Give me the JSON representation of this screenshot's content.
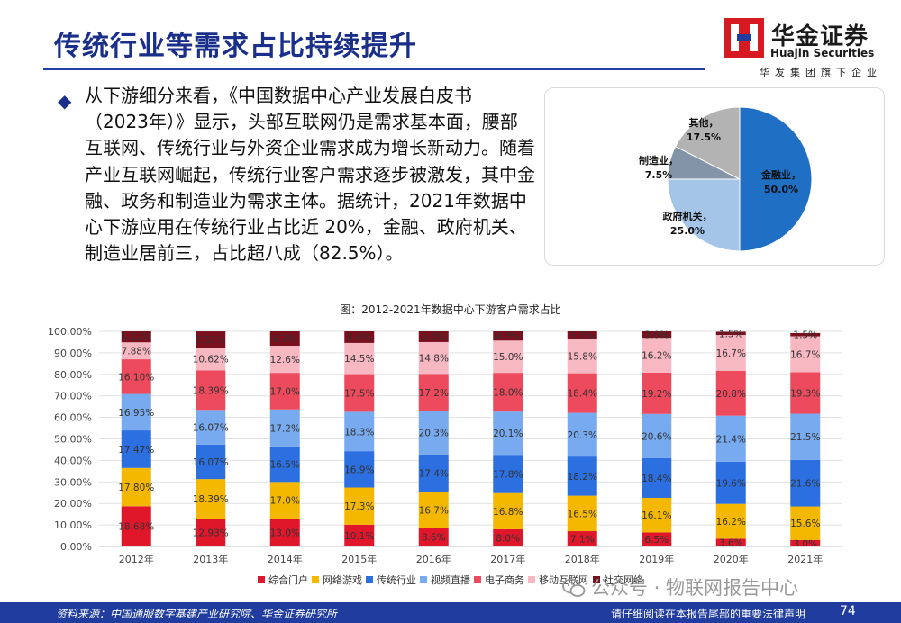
{
  "header": {
    "title": "传统行业等需求占比持续提升",
    "logo_cn": "华金证券",
    "logo_en": "Huajin Securities",
    "logo_sub": "华发集团旗下企业"
  },
  "body": {
    "bullet": "◆",
    "paragraph": "从下游细分来看，《中国数据中心产业发展白皮书（2023年）》显示，头部互联网仍是需求基本面，腰部互联网、传统行业与外资企业需求成为增长新动力。随着产业互联网崛起，传统行业客户需求逐步被激发，其中金融、政务和制造业为需求主体。据统计，2021年数据中心下游应用在传统行业占比近 20%，金融、政府机关、制造业居前三，占比超八成（82.5%）。"
  },
  "pie_chart": {
    "slices": [
      {
        "name": "金融业",
        "value": 50.0,
        "label": "50.0%",
        "color": "#1f6fc5"
      },
      {
        "name": "政府机关",
        "value": 25.0,
        "label": "25.0%",
        "color": "#a5c5e8"
      },
      {
        "name": "制造业",
        "value": 7.5,
        "label": "7.5%",
        "color": "#8494a8"
      },
      {
        "name": "其他",
        "value": 17.5,
        "label": "17.5%",
        "color": "#b3b3b3"
      }
    ]
  },
  "chart_title": "图：2012-2021年数据中心下游客户需求占比",
  "chart_data": {
    "type": "bar",
    "stacked": true,
    "categories": [
      "2012年",
      "2013年",
      "2014年",
      "2015年",
      "2016年",
      "2017年",
      "2018年",
      "2019年",
      "2020年",
      "2021年"
    ],
    "ylim": [
      0,
      100
    ],
    "yticks": [
      "0.00%",
      "10.00%",
      "20.00%",
      "30.00%",
      "40.00%",
      "50.00%",
      "60.00%",
      "70.00%",
      "80.00%",
      "90.00%",
      "100.00%"
    ],
    "legend_position": "bottom",
    "series": [
      {
        "name": "综合门户",
        "color": "#e0162b",
        "values": [
          18.68,
          12.93,
          13.0,
          10.1,
          8.6,
          8.0,
          7.1,
          6.5,
          3.6,
          3.0
        ],
        "labels": [
          "18.68%",
          "12.93%",
          "13.0%",
          "10.1%",
          "8.6%",
          "8.0%",
          "7.1%",
          "6.5%",
          "3.6%",
          "3.0%"
        ]
      },
      {
        "name": "网络游戏",
        "color": "#f5b800",
        "values": [
          17.8,
          18.39,
          17.0,
          17.3,
          16.7,
          16.8,
          16.5,
          16.1,
          16.2,
          15.6
        ],
        "labels": [
          "17.80%",
          "18.39%",
          "17.0%",
          "17.3%",
          "16.7%",
          "16.8%",
          "16.5%",
          "16.1%",
          "16.2%",
          "15.6%"
        ]
      },
      {
        "name": "传统行业",
        "color": "#2c6fe0",
        "values": [
          17.47,
          16.07,
          16.5,
          16.9,
          17.4,
          17.8,
          18.2,
          18.4,
          19.6,
          21.6
        ],
        "labels": [
          "17.47%",
          "16.07%",
          "16.5%",
          "16.9%",
          "17.4%",
          "17.8%",
          "18.2%",
          "18.4%",
          "19.6%",
          "21.6%"
        ]
      },
      {
        "name": "视频直播",
        "color": "#77aaee",
        "values": [
          16.95,
          16.07,
          17.2,
          18.3,
          20.3,
          20.1,
          20.3,
          20.6,
          21.4,
          21.5
        ],
        "labels": [
          "16.95%",
          "16.07%",
          "17.2%",
          "18.3%",
          "20.3%",
          "20.1%",
          "20.3%",
          "20.6%",
          "21.4%",
          "21.5%"
        ]
      },
      {
        "name": "电子商务",
        "color": "#ee4a5e",
        "values": [
          16.1,
          18.39,
          17.0,
          17.5,
          17.2,
          18.0,
          18.4,
          19.2,
          20.8,
          19.3
        ],
        "labels": [
          "16.10%",
          "18.39%",
          "17.0%",
          "17.5%",
          "17.2%",
          "18.0%",
          "18.4%",
          "19.2%",
          "20.8%",
          "19.3%"
        ]
      },
      {
        "name": "移动互联网",
        "color": "#f7b8c2",
        "values": [
          7.88,
          10.62,
          12.6,
          14.5,
          14.8,
          15.0,
          15.8,
          16.2,
          16.7,
          16.7
        ],
        "labels": [
          "7.88%",
          "10.62%",
          "12.6%",
          "14.5%",
          "14.8%",
          "15.0%",
          "15.8%",
          "16.2%",
          "16.7%",
          "16.7%"
        ]
      },
      {
        "name": "社交网络",
        "color": "#7a0f1e",
        "values": [
          5.12,
          7.51,
          6.7,
          5.4,
          5.0,
          4.3,
          3.7,
          3.0,
          1.5,
          1.5
        ],
        "labels": [
          "5.12%",
          "7.51%",
          "6.7%",
          "5.4%",
          "5.0%",
          "4.3%",
          "3.7%",
          "3.0%",
          "1.5%",
          "1.5%"
        ]
      }
    ]
  },
  "watermark": "公众号 · 物联网报告中心",
  "footer": {
    "source": "资料来源：中国通服数字基建产业研究院、华金证券研究所",
    "notice": "请仔细阅读在本报告尾部的重要法律声明",
    "page": "74"
  }
}
